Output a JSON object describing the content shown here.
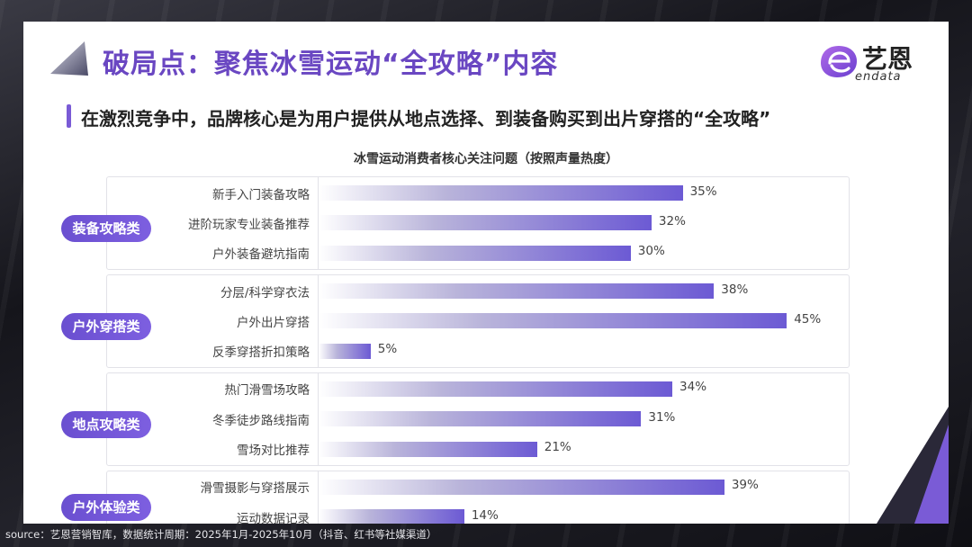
{
  "header": {
    "title": "破局点：聚焦冰雪运动“全攻略”内容",
    "subtitle": "在激烈竞争中，品牌核心是为用户提供从地点选择、到装备购买到出片穿搭的“全攻略”",
    "logo_cn": "艺恩",
    "logo_en": "endata"
  },
  "chart_data": {
    "type": "bar",
    "orientation": "horizontal",
    "title": "冰雪运动消费者核心关注问题（按照声量热度）",
    "value_suffix": "%",
    "xlim": [
      0,
      45
    ],
    "groups": [
      {
        "name": "装备攻略类",
        "items": [
          {
            "label": "新手入门装备攻略",
            "value": 35
          },
          {
            "label": "进阶玩家专业装备推荐",
            "value": 32
          },
          {
            "label": "户外装备避坑指南",
            "value": 30
          }
        ]
      },
      {
        "name": "户外穿搭类",
        "items": [
          {
            "label": "分层/科学穿衣法",
            "value": 38
          },
          {
            "label": "户外出片穿搭",
            "value": 45
          },
          {
            "label": "反季穿搭折扣策略",
            "value": 5
          }
        ]
      },
      {
        "name": "地点攻略类",
        "items": [
          {
            "label": "热门滑雪场攻略",
            "value": 34
          },
          {
            "label": "冬季徒步路线指南",
            "value": 31
          },
          {
            "label": "雪场对比推荐",
            "value": 21
          }
        ]
      },
      {
        "name": "户外体验类",
        "items": [
          {
            "label": "滑雪摄影与穿搭展示",
            "value": 39
          },
          {
            "label": "运动数据记录",
            "value": 14
          }
        ]
      }
    ],
    "colors": {
      "bar_start": "#ffffff",
      "bar_end": "#6c5ad4",
      "pill": "#6a4fd0"
    }
  },
  "footer": {
    "source": "source：艺恩营销智库，数据统计周期：2025年1月-2025年10月（抖音、红书等社媒渠道）"
  }
}
